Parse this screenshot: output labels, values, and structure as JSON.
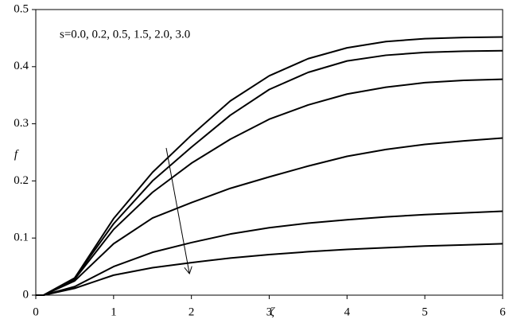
{
  "chart_data": {
    "type": "line",
    "annotation": "s=0.0, 0.2, 0.5, 1.5, 2.0, 3.0",
    "x_label": "ζ",
    "y_label": "f",
    "x": [
      0,
      0.1,
      0.5,
      1,
      1.5,
      2,
      2.5,
      3,
      3.5,
      4,
      4.5,
      5,
      5.5,
      6
    ],
    "series": [
      {
        "color": "#000000",
        "values": [
          0,
          0,
          0.03,
          0.134,
          0.215,
          0.28,
          0.34,
          0.384,
          0.414,
          0.433,
          0.444,
          0.449,
          0.451,
          0.452
        ]
      },
      {
        "color": "#000000",
        "values": [
          0,
          0,
          0.03,
          0.125,
          0.2,
          0.259,
          0.315,
          0.36,
          0.39,
          0.41,
          0.42,
          0.425,
          0.427,
          0.428
        ]
      },
      {
        "color": "#000000",
        "values": [
          0,
          0,
          0.028,
          0.115,
          0.18,
          0.231,
          0.273,
          0.308,
          0.333,
          0.352,
          0.364,
          0.372,
          0.376,
          0.378
        ]
      },
      {
        "color": "#000000",
        "values": [
          0,
          0,
          0.025,
          0.09,
          0.135,
          0.162,
          0.187,
          0.207,
          0.226,
          0.243,
          0.255,
          0.264,
          0.27,
          0.275
        ]
      },
      {
        "color": "#000000",
        "values": [
          0,
          0,
          0.015,
          0.05,
          0.075,
          0.092,
          0.107,
          0.118,
          0.126,
          0.132,
          0.137,
          0.141,
          0.144,
          0.147
        ]
      },
      {
        "color": "#000000",
        "values": [
          0,
          0,
          0.012,
          0.035,
          0.048,
          0.057,
          0.065,
          0.071,
          0.076,
          0.08,
          0.083,
          0.086,
          0.088,
          0.09
        ]
      }
    ],
    "xlim": [
      0,
      6
    ],
    "xticks": [
      0,
      1,
      2,
      3,
      4,
      5,
      6
    ],
    "ylim": [
      0,
      0.5
    ],
    "yticks": [
      0,
      0.1,
      0.2,
      0.3,
      0.4,
      0.5
    ],
    "grid": false
  }
}
